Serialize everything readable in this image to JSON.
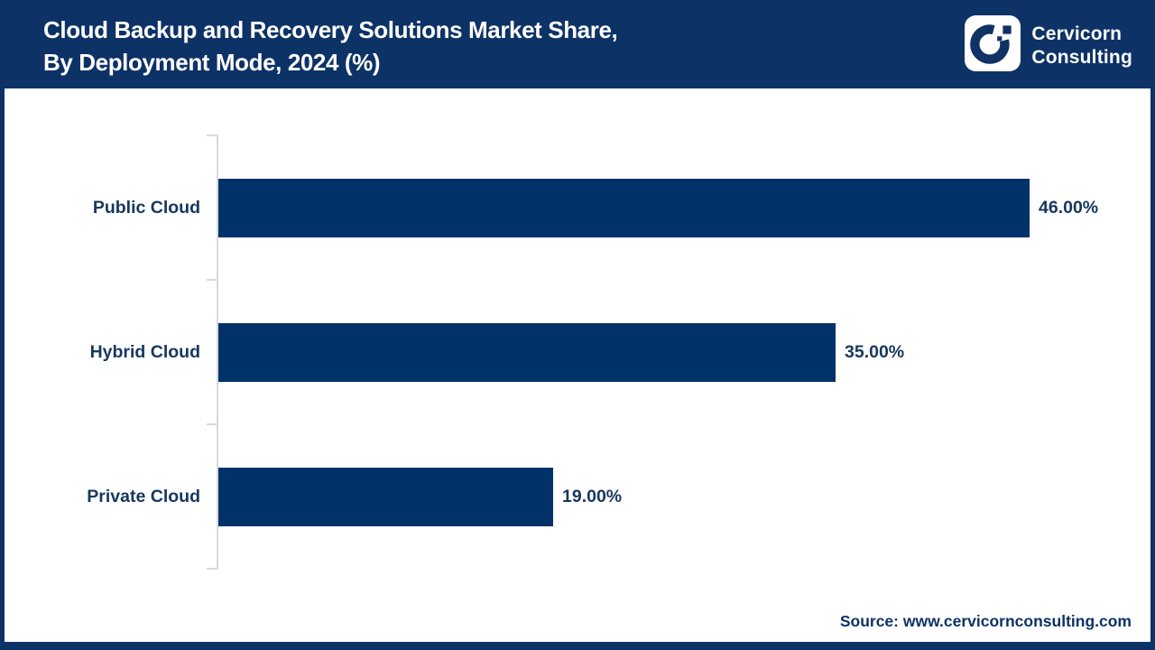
{
  "header": {
    "title_line1": "Cloud Backup and Recovery Solutions Market Share,",
    "title_line2": "By Deployment Mode, 2024 (%)",
    "logo": {
      "icon": "cervicorn-c-logo",
      "name_line1": "Cervicorn",
      "name_line2": "Consulting"
    }
  },
  "chart_data": {
    "type": "bar",
    "orientation": "horizontal",
    "title": "Cloud Backup and Recovery Solutions Market Share, By Deployment Mode, 2024 (%)",
    "categories": [
      "Public Cloud",
      "Hybrid Cloud",
      "Private Cloud"
    ],
    "values": [
      46.0,
      35.0,
      19.0
    ],
    "value_labels": [
      "46.00%",
      "35.00%",
      "19.00%"
    ],
    "xlabel": "",
    "ylabel": "",
    "xlim": [
      0,
      47.1
    ],
    "grid": false,
    "legend": "none",
    "bar_color": "#003269"
  },
  "footer": {
    "source": "Source: www.cervicornconsulting.com"
  },
  "colors": {
    "header_bg": "#0d3266",
    "frame_border": "#0d3266",
    "bar": "#003269",
    "label_text": "#17375e",
    "axis_line": "#d9d9d9",
    "title_text": "#ffffff",
    "background": "#ffffff"
  }
}
